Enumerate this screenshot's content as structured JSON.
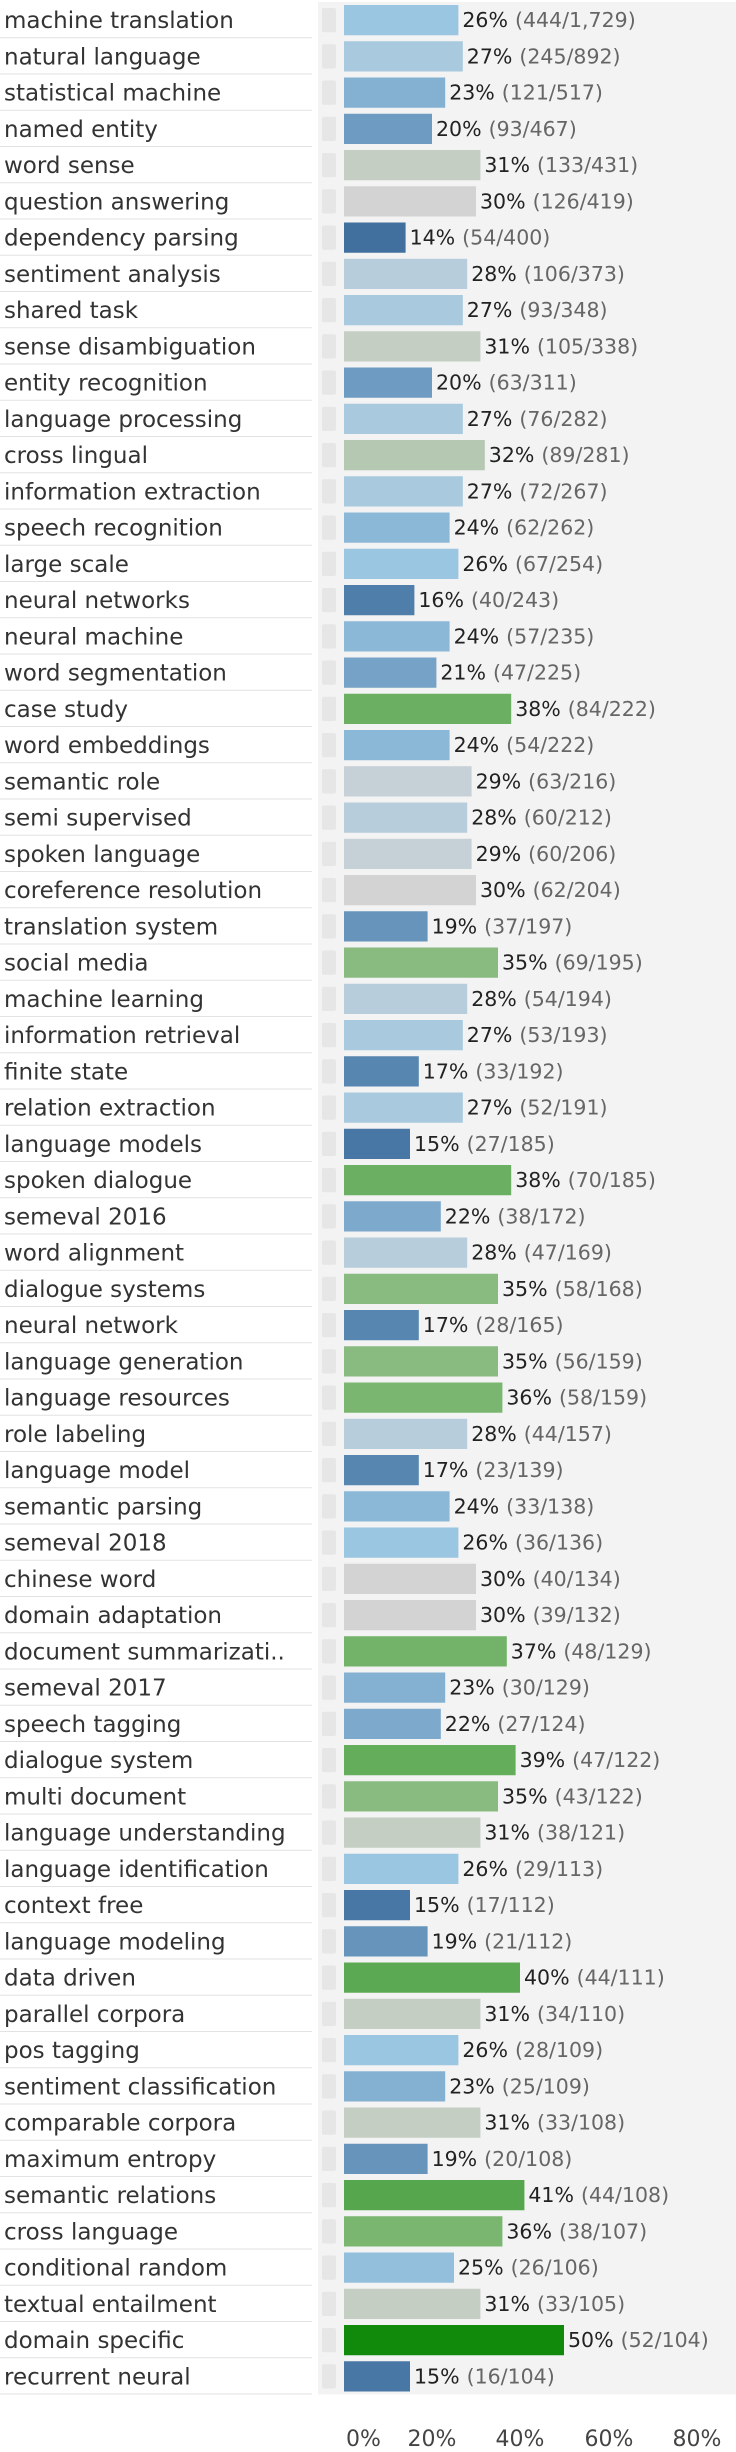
{
  "chart_data": {
    "type": "bar",
    "orientation": "horizontal",
    "xlim": [
      0,
      80
    ],
    "x_ticks": [
      "0%",
      "20%",
      "40%",
      "60%",
      "80%"
    ],
    "grid": false,
    "rows": [
      {
        "label": "machine translation",
        "pct": 26,
        "hits": 444,
        "total": 1729,
        "pct_text": "26%",
        "frac_text": "(444/1,729)"
      },
      {
        "label": "natural language",
        "pct": 27,
        "hits": 245,
        "total": 892,
        "pct_text": "27%",
        "frac_text": "(245/892)"
      },
      {
        "label": "statistical machine",
        "pct": 23,
        "hits": 121,
        "total": 517,
        "pct_text": "23%",
        "frac_text": "(121/517)"
      },
      {
        "label": "named entity",
        "pct": 20,
        "hits": 93,
        "total": 467,
        "pct_text": "20%",
        "frac_text": "(93/467)"
      },
      {
        "label": "word sense",
        "pct": 31,
        "hits": 133,
        "total": 431,
        "pct_text": "31%",
        "frac_text": "(133/431)"
      },
      {
        "label": "question answering",
        "pct": 30,
        "hits": 126,
        "total": 419,
        "pct_text": "30%",
        "frac_text": "(126/419)"
      },
      {
        "label": "dependency parsing",
        "pct": 14,
        "hits": 54,
        "total": 400,
        "pct_text": "14%",
        "frac_text": "(54/400)"
      },
      {
        "label": "sentiment analysis",
        "pct": 28,
        "hits": 106,
        "total": 373,
        "pct_text": "28%",
        "frac_text": "(106/373)"
      },
      {
        "label": "shared task",
        "pct": 27,
        "hits": 93,
        "total": 348,
        "pct_text": "27%",
        "frac_text": "(93/348)"
      },
      {
        "label": "sense disambiguation",
        "pct": 31,
        "hits": 105,
        "total": 338,
        "pct_text": "31%",
        "frac_text": "(105/338)"
      },
      {
        "label": "entity recognition",
        "pct": 20,
        "hits": 63,
        "total": 311,
        "pct_text": "20%",
        "frac_text": "(63/311)"
      },
      {
        "label": "language processing",
        "pct": 27,
        "hits": 76,
        "total": 282,
        "pct_text": "27%",
        "frac_text": "(76/282)"
      },
      {
        "label": "cross lingual",
        "pct": 32,
        "hits": 89,
        "total": 281,
        "pct_text": "32%",
        "frac_text": "(89/281)"
      },
      {
        "label": "information extraction",
        "pct": 27,
        "hits": 72,
        "total": 267,
        "pct_text": "27%",
        "frac_text": "(72/267)"
      },
      {
        "label": "speech recognition",
        "pct": 24,
        "hits": 62,
        "total": 262,
        "pct_text": "24%",
        "frac_text": "(62/262)"
      },
      {
        "label": "large scale",
        "pct": 26,
        "hits": 67,
        "total": 254,
        "pct_text": "26%",
        "frac_text": "(67/254)"
      },
      {
        "label": "neural networks",
        "pct": 16,
        "hits": 40,
        "total": 243,
        "pct_text": "16%",
        "frac_text": "(40/243)"
      },
      {
        "label": "neural machine",
        "pct": 24,
        "hits": 57,
        "total": 235,
        "pct_text": "24%",
        "frac_text": "(57/235)"
      },
      {
        "label": "word segmentation",
        "pct": 21,
        "hits": 47,
        "total": 225,
        "pct_text": "21%",
        "frac_text": "(47/225)"
      },
      {
        "label": "case study",
        "pct": 38,
        "hits": 84,
        "total": 222,
        "pct_text": "38%",
        "frac_text": "(84/222)"
      },
      {
        "label": "word embeddings",
        "pct": 24,
        "hits": 54,
        "total": 222,
        "pct_text": "24%",
        "frac_text": "(54/222)"
      },
      {
        "label": "semantic role",
        "pct": 29,
        "hits": 63,
        "total": 216,
        "pct_text": "29%",
        "frac_text": "(63/216)"
      },
      {
        "label": "semi supervised",
        "pct": 28,
        "hits": 60,
        "total": 212,
        "pct_text": "28%",
        "frac_text": "(60/212)"
      },
      {
        "label": "spoken language",
        "pct": 29,
        "hits": 60,
        "total": 206,
        "pct_text": "29%",
        "frac_text": "(60/206)"
      },
      {
        "label": "coreference resolution",
        "pct": 30,
        "hits": 62,
        "total": 204,
        "pct_text": "30%",
        "frac_text": "(62/204)"
      },
      {
        "label": "translation system",
        "pct": 19,
        "hits": 37,
        "total": 197,
        "pct_text": "19%",
        "frac_text": "(37/197)"
      },
      {
        "label": "social media",
        "pct": 35,
        "hits": 69,
        "total": 195,
        "pct_text": "35%",
        "frac_text": "(69/195)"
      },
      {
        "label": "machine learning",
        "pct": 28,
        "hits": 54,
        "total": 194,
        "pct_text": "28%",
        "frac_text": "(54/194)"
      },
      {
        "label": "information retrieval",
        "pct": 27,
        "hits": 53,
        "total": 193,
        "pct_text": "27%",
        "frac_text": "(53/193)"
      },
      {
        "label": "finite state",
        "pct": 17,
        "hits": 33,
        "total": 192,
        "pct_text": "17%",
        "frac_text": "(33/192)"
      },
      {
        "label": "relation extraction",
        "pct": 27,
        "hits": 52,
        "total": 191,
        "pct_text": "27%",
        "frac_text": "(52/191)"
      },
      {
        "label": "language models",
        "pct": 15,
        "hits": 27,
        "total": 185,
        "pct_text": "15%",
        "frac_text": "(27/185)"
      },
      {
        "label": "spoken dialogue",
        "pct": 38,
        "hits": 70,
        "total": 185,
        "pct_text": "38%",
        "frac_text": "(70/185)"
      },
      {
        "label": "semeval 2016",
        "pct": 22,
        "hits": 38,
        "total": 172,
        "pct_text": "22%",
        "frac_text": "(38/172)"
      },
      {
        "label": "word alignment",
        "pct": 28,
        "hits": 47,
        "total": 169,
        "pct_text": "28%",
        "frac_text": "(47/169)"
      },
      {
        "label": "dialogue systems",
        "pct": 35,
        "hits": 58,
        "total": 168,
        "pct_text": "35%",
        "frac_text": "(58/168)"
      },
      {
        "label": "neural network",
        "pct": 17,
        "hits": 28,
        "total": 165,
        "pct_text": "17%",
        "frac_text": "(28/165)"
      },
      {
        "label": "language generation",
        "pct": 35,
        "hits": 56,
        "total": 159,
        "pct_text": "35%",
        "frac_text": "(56/159)"
      },
      {
        "label": "language resources",
        "pct": 36,
        "hits": 58,
        "total": 159,
        "pct_text": "36%",
        "frac_text": "(58/159)"
      },
      {
        "label": "role labeling",
        "pct": 28,
        "hits": 44,
        "total": 157,
        "pct_text": "28%",
        "frac_text": "(44/157)"
      },
      {
        "label": "language model",
        "pct": 17,
        "hits": 23,
        "total": 139,
        "pct_text": "17%",
        "frac_text": "(23/139)"
      },
      {
        "label": "semantic parsing",
        "pct": 24,
        "hits": 33,
        "total": 138,
        "pct_text": "24%",
        "frac_text": "(33/138)"
      },
      {
        "label": "semeval 2018",
        "pct": 26,
        "hits": 36,
        "total": 136,
        "pct_text": "26%",
        "frac_text": "(36/136)"
      },
      {
        "label": "chinese word",
        "pct": 30,
        "hits": 40,
        "total": 134,
        "pct_text": "30%",
        "frac_text": "(40/134)"
      },
      {
        "label": "domain adaptation",
        "pct": 30,
        "hits": 39,
        "total": 132,
        "pct_text": "30%",
        "frac_text": "(39/132)"
      },
      {
        "label": "document summarizati..",
        "pct": 37,
        "hits": 48,
        "total": 129,
        "pct_text": "37%",
        "frac_text": "(48/129)"
      },
      {
        "label": "semeval 2017",
        "pct": 23,
        "hits": 30,
        "total": 129,
        "pct_text": "23%",
        "frac_text": "(30/129)"
      },
      {
        "label": "speech tagging",
        "pct": 22,
        "hits": 27,
        "total": 124,
        "pct_text": "22%",
        "frac_text": "(27/124)"
      },
      {
        "label": "dialogue system",
        "pct": 39,
        "hits": 47,
        "total": 122,
        "pct_text": "39%",
        "frac_text": "(47/122)"
      },
      {
        "label": "multi document",
        "pct": 35,
        "hits": 43,
        "total": 122,
        "pct_text": "35%",
        "frac_text": "(43/122)"
      },
      {
        "label": "language understanding",
        "pct": 31,
        "hits": 38,
        "total": 121,
        "pct_text": "31%",
        "frac_text": "(38/121)"
      },
      {
        "label": "language identification",
        "pct": 26,
        "hits": 29,
        "total": 113,
        "pct_text": "26%",
        "frac_text": "(29/113)"
      },
      {
        "label": "context free",
        "pct": 15,
        "hits": 17,
        "total": 112,
        "pct_text": "15%",
        "frac_text": "(17/112)"
      },
      {
        "label": "language modeling",
        "pct": 19,
        "hits": 21,
        "total": 112,
        "pct_text": "19%",
        "frac_text": "(21/112)"
      },
      {
        "label": "data driven",
        "pct": 40,
        "hits": 44,
        "total": 111,
        "pct_text": "40%",
        "frac_text": "(44/111)"
      },
      {
        "label": "parallel corpora",
        "pct": 31,
        "hits": 34,
        "total": 110,
        "pct_text": "31%",
        "frac_text": "(34/110)"
      },
      {
        "label": "pos tagging",
        "pct": 26,
        "hits": 28,
        "total": 109,
        "pct_text": "26%",
        "frac_text": "(28/109)"
      },
      {
        "label": "sentiment classification",
        "pct": 23,
        "hits": 25,
        "total": 109,
        "pct_text": "23%",
        "frac_text": "(25/109)"
      },
      {
        "label": "comparable corpora",
        "pct": 31,
        "hits": 33,
        "total": 108,
        "pct_text": "31%",
        "frac_text": "(33/108)"
      },
      {
        "label": "maximum entropy",
        "pct": 19,
        "hits": 20,
        "total": 108,
        "pct_text": "19%",
        "frac_text": "(20/108)"
      },
      {
        "label": "semantic relations",
        "pct": 41,
        "hits": 44,
        "total": 108,
        "pct_text": "41%",
        "frac_text": "(44/108)"
      },
      {
        "label": "cross language",
        "pct": 36,
        "hits": 38,
        "total": 107,
        "pct_text": "36%",
        "frac_text": "(38/107)"
      },
      {
        "label": "conditional random",
        "pct": 25,
        "hits": 26,
        "total": 106,
        "pct_text": "25%",
        "frac_text": "(26/106)"
      },
      {
        "label": "textual entailment",
        "pct": 31,
        "hits": 33,
        "total": 105,
        "pct_text": "31%",
        "frac_text": "(33/105)"
      },
      {
        "label": "domain specific",
        "pct": 50,
        "hits": 52,
        "total": 104,
        "pct_text": "50%",
        "frac_text": "(52/104)"
      },
      {
        "label": "recurrent neural",
        "pct": 15,
        "hits": 16,
        "total": 104,
        "pct_text": "15%",
        "frac_text": "(16/104)"
      }
    ]
  },
  "colors": {
    "stripe": "#f3f3f3",
    "row_divider": "#e2e2e2",
    "glyph": "#e6e6e6",
    "axis_text": "#444444",
    "scale_low": "#41709f",
    "scale_mid_blue": "#9ac6e2",
    "scale_neutral": "#d3d3d3",
    "scale_green": "#7ab670",
    "scale_max": "#118a0c"
  }
}
